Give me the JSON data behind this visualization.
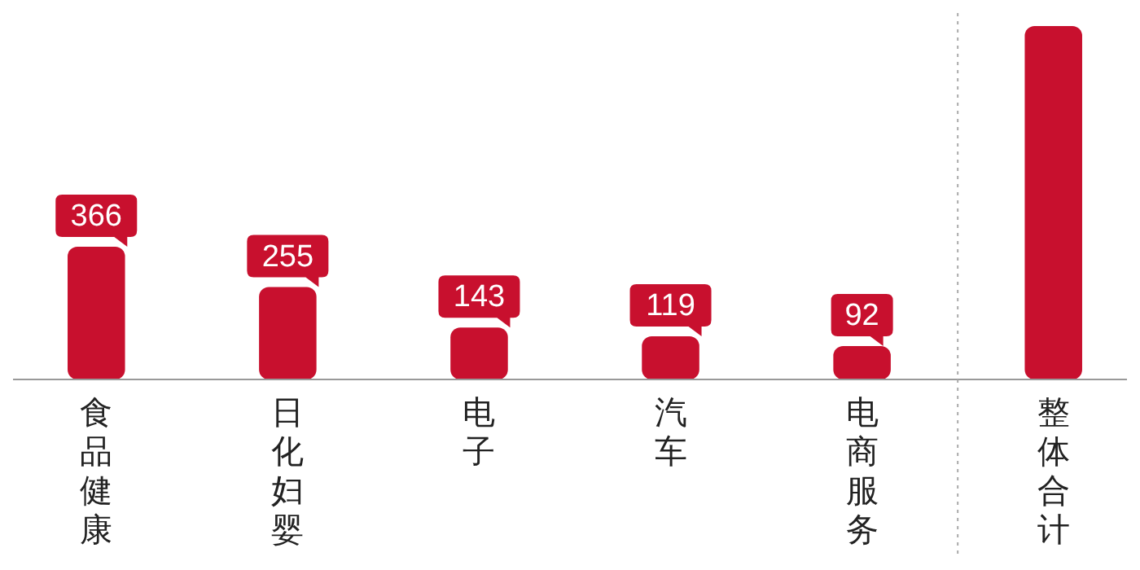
{
  "chart_data": {
    "type": "bar",
    "categories": [
      "食品健康",
      "日化妇婴",
      "电子",
      "汽车",
      "电商服务",
      "整体合计"
    ],
    "values": [
      366,
      255,
      143,
      119,
      92,
      975
    ],
    "value_labels": [
      "366",
      "255",
      "143",
      "119",
      "92",
      null
    ],
    "color": "#c8102e",
    "tick_labels": "x"
  }
}
